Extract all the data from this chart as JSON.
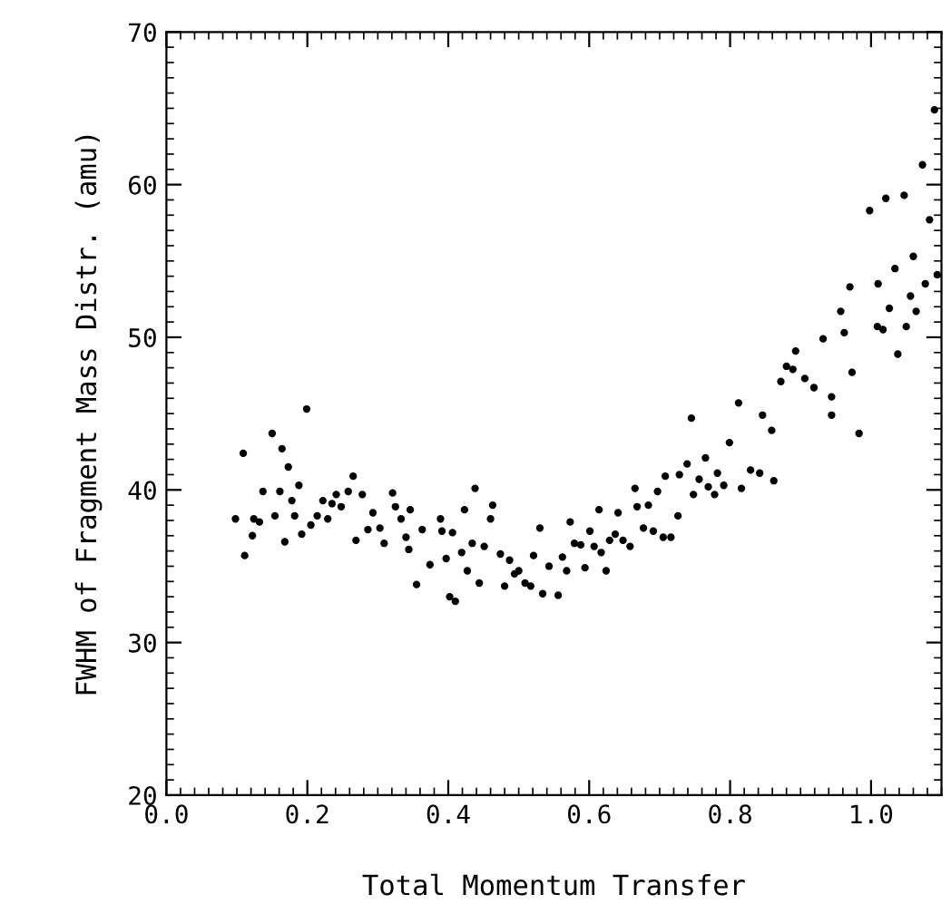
{
  "chart_data": {
    "type": "scatter",
    "xlabel": "Total Momentum Transfer",
    "ylabel": "FWHM of Fragment Mass Distr. (amu)",
    "xlim": [
      0,
      1.1
    ],
    "ylim": [
      20,
      70
    ],
    "xticks": [
      {
        "value": 0,
        "label": "0.0"
      },
      0.2,
      0.4,
      0.6,
      0.8,
      {
        "value": 1.0,
        "label": "1.0"
      }
    ],
    "yticks": [
      20,
      30,
      40,
      50,
      60,
      70
    ],
    "marker": "circle",
    "grid": false,
    "legend": false,
    "series": [
      {
        "color": "#000000",
        "x": [
          0.098,
          0.109,
          0.111,
          0.124,
          0.122,
          0.132,
          0.137,
          0.15,
          0.154,
          0.161,
          0.164,
          0.168,
          0.173,
          0.178,
          0.182,
          0.188,
          0.192,
          0.199,
          0.205,
          0.214,
          0.222,
          0.229,
          0.235,
          0.241,
          0.248,
          0.258,
          0.265,
          0.269,
          0.278,
          0.286,
          0.293,
          0.303,
          0.309,
          0.321,
          0.325,
          0.333,
          0.346,
          0.34,
          0.344,
          0.355,
          0.363,
          0.374,
          0.389,
          0.391,
          0.397,
          0.402,
          0.41,
          0.406,
          0.419,
          0.423,
          0.427,
          0.434,
          0.438,
          0.444,
          0.451,
          0.46,
          0.463,
          0.474,
          0.48,
          0.487,
          0.494,
          0.5,
          0.509,
          0.517,
          0.521,
          0.53,
          0.534,
          0.543,
          0.556,
          0.562,
          0.568,
          0.573,
          0.579,
          0.588,
          0.594,
          0.601,
          0.607,
          0.614,
          0.617,
          0.624,
          0.629,
          0.637,
          0.641,
          0.648,
          0.658,
          0.665,
          0.668,
          0.677,
          0.684,
          0.691,
          0.697,
          0.705,
          0.708,
          0.716,
          0.726,
          0.728,
          0.739,
          0.745,
          0.748,
          0.756,
          0.765,
          0.769,
          0.778,
          0.782,
          0.791,
          0.799,
          0.812,
          0.816,
          0.829,
          0.842,
          0.846,
          0.859,
          0.862,
          0.872,
          0.88,
          0.893,
          0.889,
          0.906,
          0.919,
          0.932,
          0.944,
          0.944,
          0.957,
          0.962,
          0.97,
          0.973,
          0.983,
          0.998,
          1.009,
          1.01,
          1.017,
          1.021,
          1.026,
          1.034,
          1.038,
          1.047,
          1.05,
          1.056,
          1.06,
          1.064,
          1.073,
          1.077,
          1.083,
          1.09,
          1.094
        ],
        "values": [
          38.1,
          42.4,
          35.7,
          38.1,
          37.0,
          37.9,
          39.9,
          43.7,
          38.3,
          39.9,
          42.7,
          36.6,
          41.5,
          39.3,
          38.3,
          40.3,
          37.1,
          45.3,
          37.7,
          38.3,
          39.3,
          38.1,
          39.1,
          39.7,
          38.9,
          39.9,
          40.9,
          36.7,
          39.7,
          37.4,
          38.5,
          37.5,
          36.5,
          39.8,
          38.9,
          38.1,
          38.7,
          36.9,
          36.1,
          33.8,
          37.4,
          35.1,
          38.1,
          37.3,
          35.5,
          33.0,
          32.7,
          37.2,
          35.9,
          38.7,
          34.7,
          36.5,
          40.1,
          33.9,
          36.3,
          38.1,
          39.0,
          35.8,
          33.7,
          35.4,
          34.5,
          34.7,
          33.9,
          33.7,
          35.7,
          37.5,
          33.2,
          35.0,
          33.1,
          35.6,
          34.7,
          37.9,
          36.5,
          36.4,
          34.9,
          37.3,
          36.3,
          38.7,
          35.9,
          34.7,
          36.7,
          37.1,
          38.5,
          36.7,
          36.3,
          40.1,
          38.9,
          37.5,
          39.0,
          37.3,
          39.9,
          36.9,
          40.9,
          36.9,
          38.3,
          41.0,
          41.7,
          44.7,
          39.7,
          40.7,
          42.1,
          40.2,
          39.7,
          41.1,
          40.3,
          43.1,
          45.7,
          40.1,
          41.3,
          41.1,
          44.9,
          43.9,
          40.6,
          47.1,
          48.1,
          49.1,
          47.9,
          47.3,
          46.7,
          49.9,
          46.1,
          44.9,
          51.7,
          50.3,
          53.3,
          47.7,
          43.7,
          58.3,
          50.7,
          53.5,
          50.5,
          59.1,
          51.9,
          54.5,
          48.9,
          59.3,
          50.7,
          52.7,
          55.3,
          51.7,
          61.3,
          53.5,
          57.7,
          64.9,
          54.1
        ]
      }
    ]
  }
}
